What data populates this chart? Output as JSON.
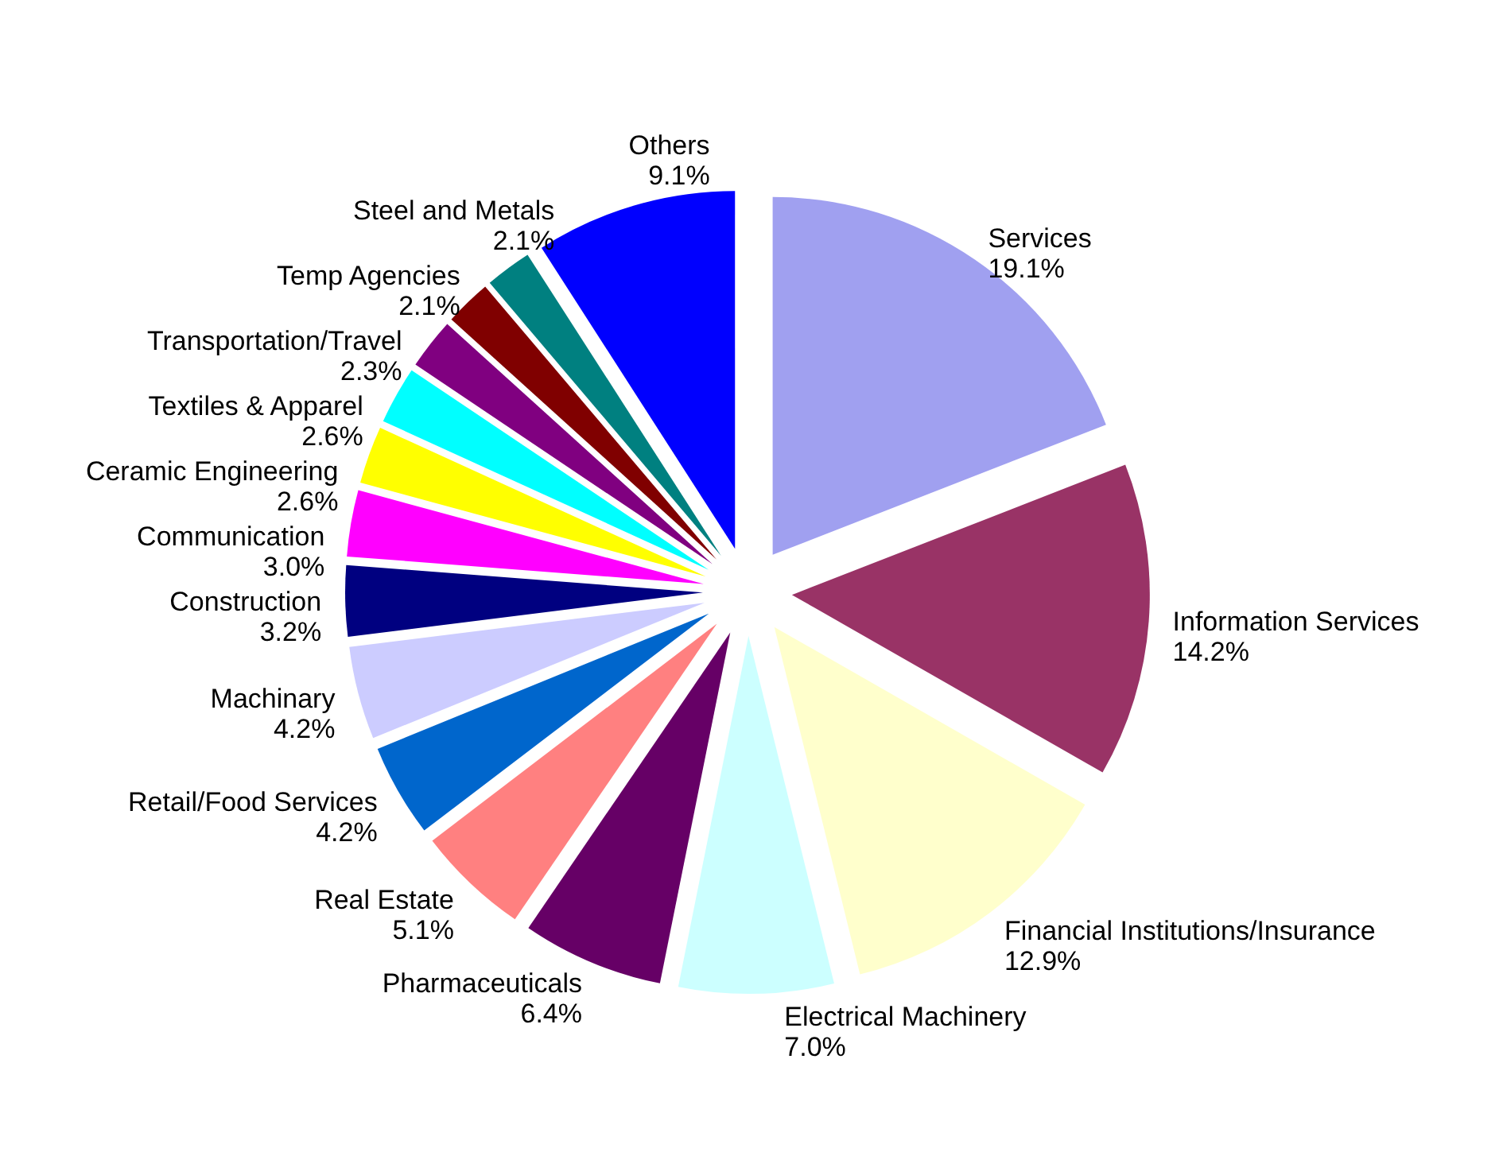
{
  "chart_data": {
    "type": "pie",
    "categories": [
      "Services",
      "Information Services",
      "Financial Institutions/Insurance",
      "Electrical Machinery",
      "Pharmaceuticals",
      "Real Estate",
      "Retail/Food Services",
      "Machinary",
      "Construction",
      "Communication",
      "Ceramic Engineering",
      "Textiles & Apparel",
      "Transportation/Travel",
      "Temp Agencies",
      "Steel and Metals",
      "Others"
    ],
    "values": [
      19.1,
      14.2,
      12.9,
      7.0,
      6.4,
      5.1,
      4.2,
      4.2,
      3.2,
      3.0,
      2.6,
      2.6,
      2.3,
      2.1,
      2.1,
      9.1
    ],
    "value_labels": [
      "19.1%",
      "14.2%",
      "12.9%",
      "7.0%",
      "6.4%",
      "5.1%",
      "4.2%",
      "4.2%",
      "3.2%",
      "3.0%",
      "2.6%",
      "2.6%",
      "2.3%",
      "2.1%",
      "2.1%",
      "9.1%"
    ],
    "colors": [
      "#a0a0f0",
      "#993366",
      "#ffffcc",
      "#ccffff",
      "#660066",
      "#ff8080",
      "#0066cc",
      "#ccccff",
      "#000080",
      "#ff00ff",
      "#ffff00",
      "#00ffff",
      "#800080",
      "#800000",
      "#008080",
      "#0000ff"
    ]
  }
}
